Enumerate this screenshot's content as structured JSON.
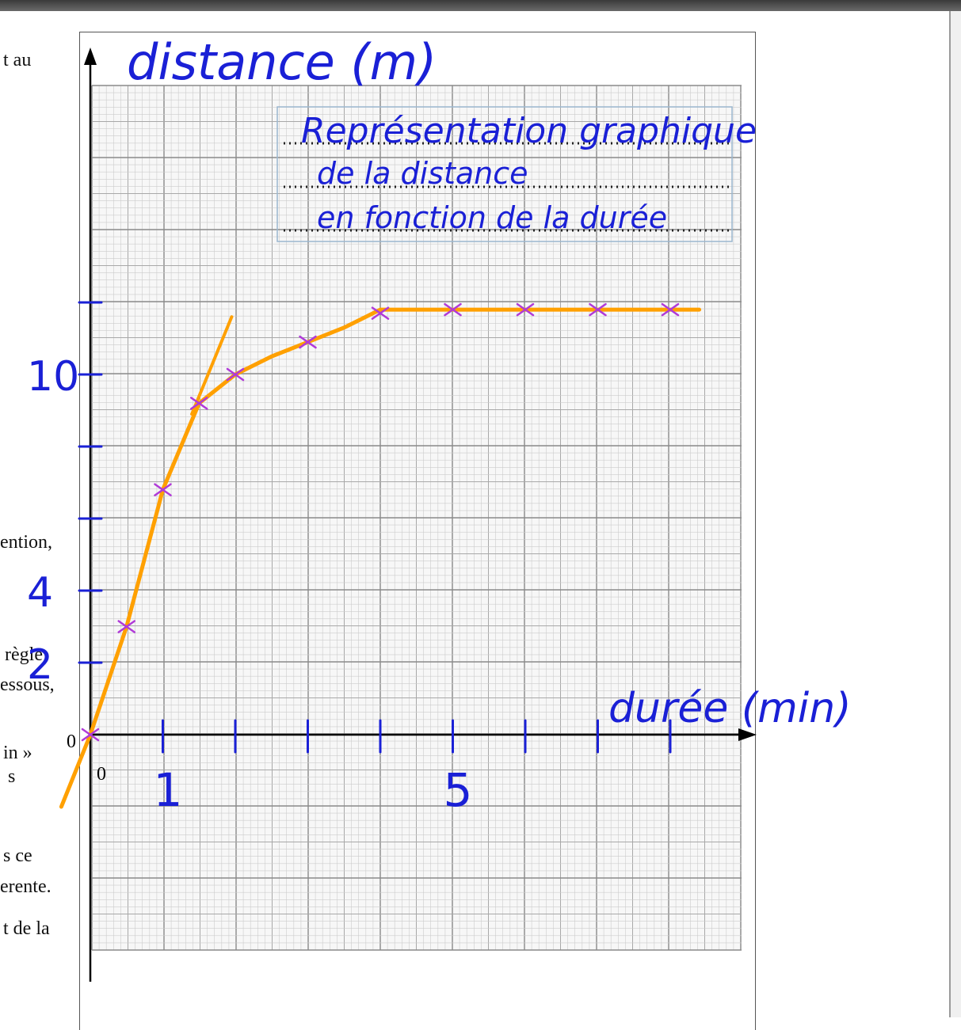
{
  "page_text_fragments": [
    {
      "text": "t au"
    },
    {
      "text": "ention,"
    },
    {
      "text": "règle"
    },
    {
      "text": "essous,"
    },
    {
      "text": "in »"
    },
    {
      "text": "s"
    },
    {
      "text": "s ce"
    },
    {
      "text": "erente."
    },
    {
      "text": "t de la"
    }
  ],
  "printed_origin_labels": {
    "y_zero": "0",
    "x_zero": "0"
  },
  "colors": {
    "handwriting": "#1a20d6",
    "curve": "#ffa000",
    "data_marks": "#b03ad8",
    "grid_minor": "#cccccc",
    "grid_major": "#8a8a8a",
    "axis": "#000000"
  },
  "chart_data": {
    "type": "line",
    "title_lines": [
      "Représentation graphique",
      "de la distance",
      "en fonction de la durée"
    ],
    "ylabel": "distance (m)",
    "xlabel": "durée (min)",
    "x_tick_labels": [
      "1",
      "5"
    ],
    "y_tick_labels": [
      "2",
      "4",
      "10"
    ],
    "xlim": [
      0,
      9
    ],
    "ylim": [
      0,
      12
    ],
    "grid": true,
    "marked_points": {
      "x": [
        0,
        0.5,
        1,
        1.5,
        2,
        3,
        4,
        5,
        6,
        7,
        8
      ],
      "y": [
        0,
        3,
        6.8,
        9.2,
        10,
        10.9,
        11.7,
        11.8,
        11.8,
        11.8,
        11.8
      ]
    },
    "fitted_curve": {
      "x": [
        -0.4,
        0,
        0.5,
        1,
        1.5,
        2,
        2.5,
        3,
        3.5,
        4,
        5,
        6,
        7,
        8,
        8.4
      ],
      "y": [
        -2,
        0,
        3,
        6.8,
        9.2,
        10,
        10.5,
        10.9,
        11.3,
        11.8,
        11.8,
        11.8,
        11.8,
        11.8,
        11.8
      ]
    },
    "tangent_line": {
      "x": [
        1.4,
        1.95
      ],
      "y": [
        8.9,
        11.6
      ]
    }
  }
}
